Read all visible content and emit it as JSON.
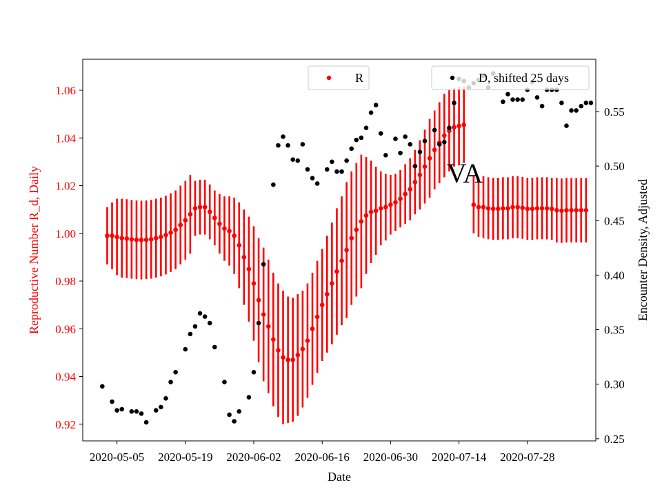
{
  "chart_data": {
    "type": "scatter",
    "title": "",
    "annotation": "VA",
    "xlabel": "Date",
    "ylabel_left": "Reproductive Number R_d, Daily",
    "ylabel_right": "Encounter Density, Adjusted",
    "x_ticks": [
      "2020-05-05",
      "2020-05-19",
      "2020-06-02",
      "2020-06-16",
      "2020-06-30",
      "2020-07-14",
      "2020-07-28"
    ],
    "y_left_ticks": [
      "0.92",
      "0.94",
      "0.96",
      "0.98",
      "1.00",
      "1.02",
      "1.04",
      "1.06"
    ],
    "y_right_ticks": [
      "0.25",
      "0.30",
      "0.35",
      "0.40",
      "0.45",
      "0.50",
      "0.55"
    ],
    "ylim_left": [
      0.913,
      1.073
    ],
    "ylim_right": [
      0.248,
      0.598
    ],
    "x_range_days_from_2020_05_05": [
      -7,
      98
    ],
    "colors": {
      "R": "#ff0000",
      "D": "#000000",
      "left_axis": "#ff0000"
    },
    "legend": [
      {
        "label": "R",
        "color": "#ff0000",
        "position": "top-center"
      },
      {
        "label": "D, shifted 25 days",
        "color": "#000000",
        "position": "top-right"
      }
    ],
    "series": [
      {
        "name": "R",
        "axis": "left",
        "x_start": "2020-05-03",
        "x_step_days": 1,
        "values": [
          0.999,
          0.999,
          0.9985,
          0.998,
          0.9978,
          0.9975,
          0.9973,
          0.9972,
          0.9973,
          0.9975,
          0.998,
          0.9985,
          0.9993,
          1.0003,
          1.0015,
          1.0035,
          1.0055,
          1.008,
          1.0105,
          1.011,
          1.011,
          1.009,
          1.0065,
          1.004,
          1.002,
          1.001,
          0.999,
          0.995,
          0.99,
          0.985,
          0.979,
          0.972,
          0.966,
          0.961,
          0.9555,
          0.951,
          0.948,
          0.947,
          0.947,
          0.949,
          0.9515,
          0.955,
          0.96,
          0.965,
          0.97,
          0.9745,
          0.979,
          0.984,
          0.9885,
          0.993,
          0.998,
          1.0015,
          1.005,
          1.0075,
          1.009,
          1.0095,
          1.0105,
          1.011,
          1.012,
          1.013,
          1.0145,
          1.0165,
          1.0185,
          1.0215,
          1.0245,
          1.028,
          1.0315,
          1.035,
          1.038,
          1.041,
          1.043,
          1.0445,
          1.045,
          1.0455
        ],
        "error": [
          0.012,
          0.014,
          0.016,
          0.0165,
          0.0165,
          0.0165,
          0.0165,
          0.0165,
          0.0165,
          0.0165,
          0.0165,
          0.0165,
          0.0165,
          0.0165,
          0.0165,
          0.0165,
          0.0165,
          0.0165,
          0.0115,
          0.0115,
          0.0115,
          0.0115,
          0.0115,
          0.0125,
          0.0135,
          0.0145,
          0.016,
          0.018,
          0.02,
          0.022,
          0.024,
          0.026,
          0.028,
          0.028,
          0.028,
          0.028,
          0.028,
          0.0265,
          0.026,
          0.0255,
          0.0245,
          0.024,
          0.0235,
          0.0235,
          0.0235,
          0.0245,
          0.0255,
          0.0265,
          0.027,
          0.0285,
          0.028,
          0.028,
          0.028,
          0.0245,
          0.0215,
          0.0185,
          0.0155,
          0.014,
          0.0125,
          0.012,
          0.012,
          0.0125,
          0.013,
          0.0135,
          0.0145,
          0.0155,
          0.0165,
          0.0165,
          0.017,
          0.0175,
          0.017,
          0.0165,
          0.0165,
          0.016
        ]
      },
      {
        "name": "R",
        "axis": "left",
        "x_start": "2020-07-17",
        "x_step_days": 1,
        "values": [
          1.012,
          1.011,
          1.011,
          1.0105,
          1.0103,
          1.0103,
          1.0105,
          1.0105,
          1.011,
          1.011,
          1.0107,
          1.0103,
          1.0103,
          1.0105,
          1.0105,
          1.0105,
          1.0103,
          1.0097,
          1.0095,
          1.0097,
          1.0097,
          1.0097,
          1.0097,
          1.0097
        ],
        "error": [
          0.012,
          0.0125,
          0.013,
          0.013,
          0.013,
          0.013,
          0.013,
          0.013,
          0.013,
          0.013,
          0.013,
          0.013,
          0.013,
          0.013,
          0.013,
          0.013,
          0.013,
          0.0135,
          0.0135,
          0.0135,
          0.0135,
          0.0135,
          0.0135,
          0.0135
        ]
      },
      {
        "name": "D, shifted 25 days",
        "axis": "right",
        "points": [
          [
            "2020-05-02",
            0.298
          ],
          [
            "2020-05-04",
            0.284
          ],
          [
            "2020-05-05",
            0.276
          ],
          [
            "2020-05-06",
            0.277
          ],
          [
            "2020-05-08",
            0.275
          ],
          [
            "2020-05-09",
            0.275
          ],
          [
            "2020-05-10",
            0.273
          ],
          [
            "2020-05-11",
            0.265
          ],
          [
            "2020-05-13",
            0.276
          ],
          [
            "2020-05-14",
            0.279
          ],
          [
            "2020-05-15",
            0.287
          ],
          [
            "2020-05-16",
            0.302
          ],
          [
            "2020-05-17",
            0.311
          ],
          [
            "2020-05-19",
            0.332
          ],
          [
            "2020-05-20",
            0.346
          ],
          [
            "2020-05-21",
            0.353
          ],
          [
            "2020-05-22",
            0.365
          ],
          [
            "2020-05-23",
            0.362
          ],
          [
            "2020-05-24",
            0.356
          ],
          [
            "2020-05-25",
            0.334
          ],
          [
            "2020-05-27",
            0.302
          ],
          [
            "2020-05-28",
            0.272
          ],
          [
            "2020-05-29",
            0.266
          ],
          [
            "2020-05-30",
            0.275
          ],
          [
            "2020-06-01",
            0.288
          ],
          [
            "2020-06-02",
            0.311
          ],
          [
            "2020-06-03",
            0.356
          ],
          [
            "2020-06-04",
            0.41
          ],
          [
            "2020-06-06",
            0.483
          ],
          [
            "2020-06-07",
            0.519
          ],
          [
            "2020-06-08",
            0.527
          ],
          [
            "2020-06-09",
            0.519
          ],
          [
            "2020-06-10",
            0.506
          ],
          [
            "2020-06-11",
            0.505
          ],
          [
            "2020-06-12",
            0.52
          ],
          [
            "2020-06-13",
            0.497
          ],
          [
            "2020-06-14",
            0.489
          ],
          [
            "2020-06-15",
            0.484
          ],
          [
            "2020-06-17",
            0.497
          ],
          [
            "2020-06-18",
            0.504
          ],
          [
            "2020-06-19",
            0.495
          ],
          [
            "2020-06-20",
            0.495
          ],
          [
            "2020-06-21",
            0.505
          ],
          [
            "2020-06-22",
            0.516
          ],
          [
            "2020-06-23",
            0.524
          ],
          [
            "2020-06-24",
            0.526
          ],
          [
            "2020-06-25",
            0.535
          ],
          [
            "2020-06-26",
            0.549
          ],
          [
            "2020-06-27",
            0.556
          ],
          [
            "2020-06-28",
            0.53
          ],
          [
            "2020-06-29",
            0.51
          ],
          [
            "2020-07-01",
            0.525
          ],
          [
            "2020-07-02",
            0.512
          ],
          [
            "2020-07-03",
            0.527
          ],
          [
            "2020-07-04",
            0.52
          ],
          [
            "2020-07-05",
            0.5
          ],
          [
            "2020-07-06",
            0.513
          ],
          [
            "2020-07-07",
            0.523
          ],
          [
            "2020-07-09",
            0.533
          ],
          [
            "2020-07-10",
            0.52
          ],
          [
            "2020-07-11",
            0.522
          ],
          [
            "2020-07-12",
            0.535
          ],
          [
            "2020-07-13",
            0.558
          ],
          [
            "2020-07-14",
            0.58
          ],
          [
            "2020-07-15",
            0.578
          ],
          [
            "2020-07-16",
            0.572
          ],
          [
            "2020-07-17",
            0.576
          ],
          [
            "2020-07-18",
            0.579
          ],
          [
            "2020-07-19",
            0.583
          ],
          [
            "2020-07-20",
            0.572
          ],
          [
            "2020-07-21",
            0.585
          ],
          [
            "2020-07-23",
            0.559
          ],
          [
            "2020-07-24",
            0.566
          ],
          [
            "2020-07-25",
            0.561
          ],
          [
            "2020-07-26",
            0.561
          ],
          [
            "2020-07-27",
            0.561
          ],
          [
            "2020-07-28",
            0.57
          ],
          [
            "2020-07-29",
            0.577
          ],
          [
            "2020-07-30",
            0.563
          ],
          [
            "2020-07-31",
            0.555
          ],
          [
            "2020-08-01",
            0.57
          ],
          [
            "2020-08-02",
            0.57
          ],
          [
            "2020-08-03",
            0.57
          ],
          [
            "2020-08-04",
            0.558
          ],
          [
            "2020-08-05",
            0.537
          ],
          [
            "2020-08-06",
            0.551
          ],
          [
            "2020-08-07",
            0.551
          ],
          [
            "2020-08-08",
            0.555
          ],
          [
            "2020-08-09",
            0.558
          ],
          [
            "2020-08-10",
            0.558
          ]
        ]
      }
    ]
  }
}
